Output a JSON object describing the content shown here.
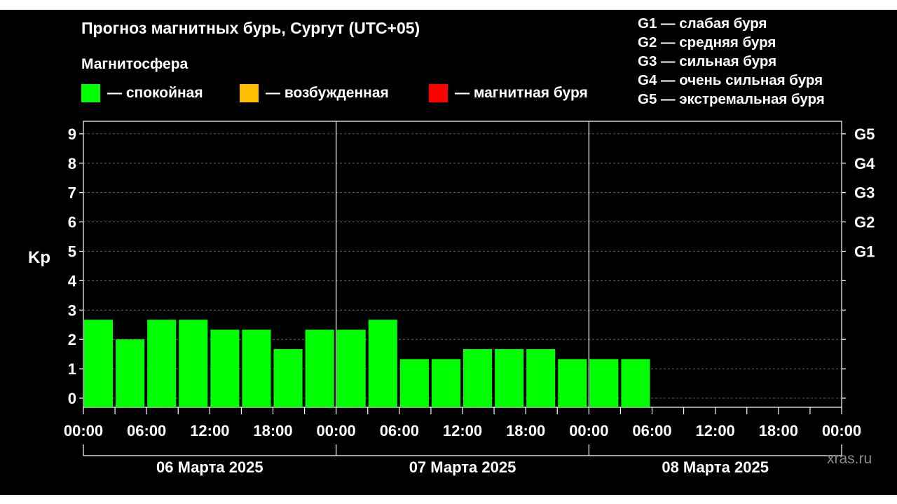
{
  "chart_data": {
    "type": "bar",
    "title": "Прогноз магнитных бурь, Сургут (UTC+05)",
    "legend_heading": "Магнитосфера",
    "legend": [
      {
        "label": "— спокойная",
        "color": "#00ff00"
      },
      {
        "label": "— возбужденная",
        "color": "#ffbf00"
      },
      {
        "label": "— магнитная буря",
        "color": "#ff0000"
      }
    ],
    "g_scale": [
      "G1 — слабая буря",
      "G2 — средняя буря",
      "G3 — сильная буря",
      "G4 — очень сильная буря",
      "G5 — экстремальная буря"
    ],
    "ylabel": "Kp",
    "ylim": [
      0,
      9
    ],
    "y_ticks": [
      "0",
      "1",
      "2",
      "3",
      "4",
      "5",
      "6",
      "7",
      "8",
      "9"
    ],
    "right_ticks": [
      {
        "value": 5,
        "label": "G1"
      },
      {
        "value": 6,
        "label": "G2"
      },
      {
        "value": 7,
        "label": "G3"
      },
      {
        "value": 8,
        "label": "G4"
      },
      {
        "value": 9,
        "label": "G5"
      }
    ],
    "x_ticks": [
      "00:00",
      "06:00",
      "12:00",
      "18:00",
      "00:00",
      "06:00",
      "12:00",
      "18:00",
      "00:00",
      "06:00",
      "12:00",
      "18:00",
      "00:00"
    ],
    "days": [
      "06 Марта 2025",
      "07 Марта 2025",
      "08 Марта 2025"
    ],
    "interval_hours": 3,
    "series": [
      {
        "color": "#00ff00",
        "values": [
          2.67,
          2.0,
          2.67,
          2.67,
          2.33,
          2.33,
          1.67,
          2.33,
          2.33,
          2.67,
          1.33,
          1.33,
          1.67,
          1.67,
          1.67,
          1.33,
          1.33,
          1.33
        ]
      }
    ],
    "grid": true,
    "watermark": "xras.ru"
  }
}
